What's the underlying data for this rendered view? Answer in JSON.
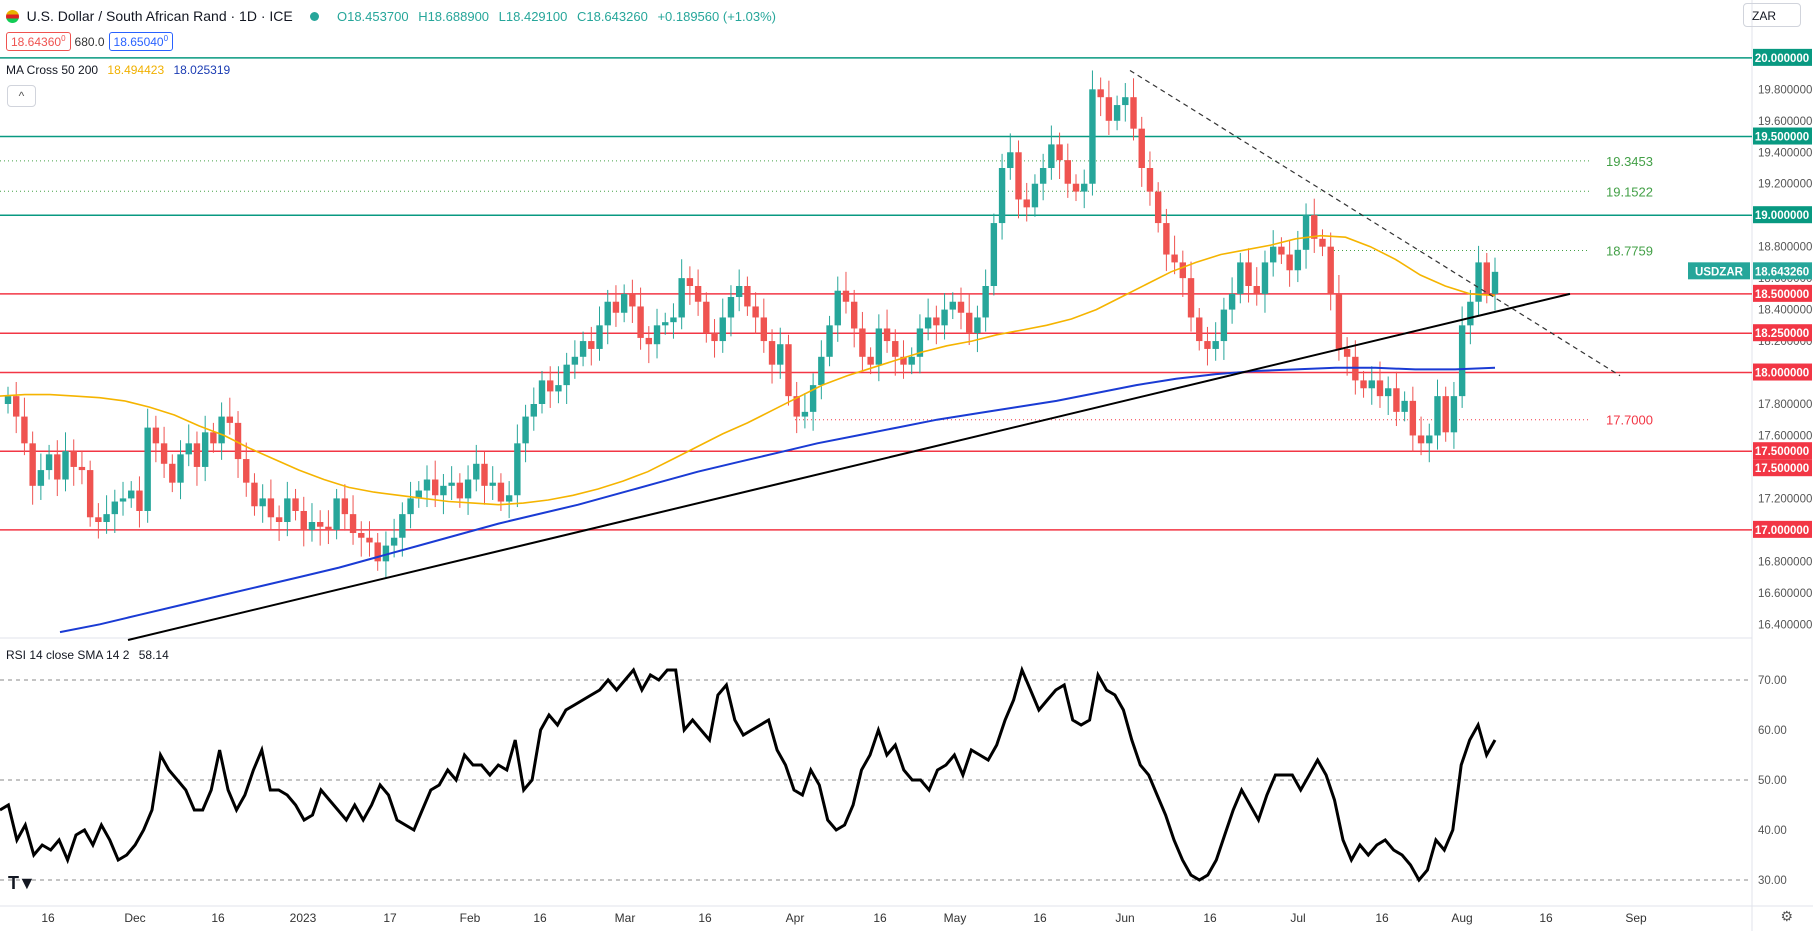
{
  "header": {
    "title": "U.S. Dollar / South African Rand · 1D · ICE",
    "open": "O18.453700",
    "high": "H18.688900",
    "low": "L18.429100",
    "close": "C18.643260",
    "change": "+0.189560 (+1.03%)",
    "sell_price": "18.64360",
    "sell_sup": "0",
    "spread": "680.0",
    "buy_price": "18.65040",
    "buy_sup": "0",
    "currency": "ZAR"
  },
  "indicators": {
    "ma_cross": {
      "label": "MA Cross 50 200",
      "fast": "18.494423",
      "slow": "18.025319"
    },
    "rsi": {
      "label": "RSI 14 close SMA 14 2",
      "value": "58.14"
    }
  },
  "colors": {
    "up": "#26a69a",
    "down": "#ef5350",
    "ma_fast": "#f5b400",
    "ma_slow": "#1a3bd4",
    "support_red": "#f23645",
    "support_green": "#089981",
    "label_green": "#43a047",
    "label_red": "#f23645"
  },
  "chart_data": [
    {
      "type": "candlestick",
      "symbol": "USDZAR",
      "last_price": "18.643260",
      "ylim": [
        16.3,
        20.05
      ],
      "y_ticks": [
        "16.400000",
        "16.600000",
        "16.800000",
        "17.000000",
        "17.200000",
        "17.400000",
        "17.500000",
        "17.600000",
        "17.800000",
        "18.000000",
        "18.200000",
        "18.250000",
        "18.400000",
        "18.500000",
        "18.600000",
        "18.800000",
        "19.000000",
        "19.200000",
        "19.400000",
        "19.500000",
        "19.600000",
        "19.800000",
        "20.000000"
      ],
      "x_ticks": [
        "16",
        "Dec",
        "16",
        "2023",
        "17",
        "Feb",
        "16",
        "Mar",
        "16",
        "Apr",
        "16",
        "May",
        "16",
        "Jun",
        "16",
        "Jul",
        "16",
        "Aug",
        "16",
        "Sep"
      ],
      "horizontal_levels": [
        {
          "value": 20.0,
          "color": "green",
          "label": "20.000000"
        },
        {
          "value": 19.5,
          "color": "green",
          "label": "19.500000"
        },
        {
          "value": 19.0,
          "color": "green",
          "label": "19.000000"
        },
        {
          "value": 18.5,
          "color": "red",
          "label": "18.500000"
        },
        {
          "value": 18.25,
          "color": "red",
          "label": "18.250000"
        },
        {
          "value": 18.0,
          "color": "red",
          "label": "18.000000"
        },
        {
          "value": 17.5,
          "color": "red",
          "label": "17.500000"
        },
        {
          "value": 17.0,
          "color": "red",
          "label": "17.000000"
        }
      ],
      "dotted_levels": [
        {
          "value": 19.3453,
          "label": "19.3453",
          "color": "green"
        },
        {
          "value": 19.1522,
          "label": "19.1522",
          "color": "green"
        },
        {
          "value": 18.7759,
          "label": "18.7759",
          "color": "green"
        },
        {
          "value": 17.7,
          "label": "17.7000",
          "color": "red"
        }
      ],
      "extra_axis_label": "17.500000",
      "close_series_note": "approximate daily closes",
      "closes": [
        17.85,
        17.72,
        17.55,
        17.28,
        17.38,
        17.48,
        17.32,
        17.5,
        17.4,
        17.38,
        17.08,
        17.05,
        17.1,
        17.18,
        17.2,
        17.25,
        17.12,
        17.65,
        17.55,
        17.42,
        17.3,
        17.48,
        17.55,
        17.4,
        17.62,
        17.55,
        17.72,
        17.68,
        17.45,
        17.3,
        17.15,
        17.2,
        17.08,
        17.05,
        17.2,
        17.12,
        17.0,
        17.05,
        17.02,
        17.0,
        17.2,
        17.1,
        16.98,
        16.95,
        16.92,
        16.8,
        16.9,
        16.95,
        17.1,
        17.2,
        17.25,
        17.32,
        17.22,
        17.28,
        17.3,
        17.2,
        17.32,
        17.42,
        17.28,
        17.3,
        17.18,
        17.22,
        17.55,
        17.72,
        17.8,
        17.95,
        17.88,
        17.92,
        18.05,
        18.1,
        18.2,
        18.15,
        18.3,
        18.45,
        18.38,
        18.5,
        18.42,
        18.22,
        18.18,
        18.3,
        18.32,
        18.35,
        18.6,
        18.55,
        18.45,
        18.25,
        18.2,
        18.35,
        18.48,
        18.55,
        18.42,
        18.35,
        18.2,
        18.05,
        18.18,
        17.85,
        17.72,
        17.75,
        17.92,
        18.1,
        18.3,
        18.52,
        18.45,
        18.28,
        18.1,
        18.05,
        18.28,
        18.2,
        18.1,
        18.05,
        18.1,
        18.28,
        18.35,
        18.3,
        18.4,
        18.45,
        18.38,
        18.25,
        18.35,
        18.55,
        18.95,
        19.3,
        19.4,
        19.1,
        19.05,
        19.2,
        19.3,
        19.45,
        19.35,
        19.2,
        19.15,
        19.2,
        19.8,
        19.75,
        19.6,
        19.7,
        19.75,
        19.55,
        19.3,
        19.15,
        18.95,
        18.75,
        18.7,
        18.6,
        18.35,
        18.2,
        18.15,
        18.2,
        18.4,
        18.5,
        18.7,
        18.55,
        18.5,
        18.7,
        18.8,
        18.75,
        18.65,
        18.78,
        19.0,
        18.85,
        18.8,
        18.5,
        18.15,
        18.1,
        17.95,
        17.9,
        17.95,
        17.85,
        17.9,
        17.75,
        17.82,
        17.6,
        17.55,
        17.6,
        17.85,
        17.62,
        17.85,
        18.3,
        18.45,
        18.7,
        18.5,
        18.64
      ],
      "ma50": [
        17.85,
        17.86,
        17.86,
        17.85,
        17.84,
        17.82,
        17.78,
        17.73,
        17.66,
        17.6,
        17.52,
        17.45,
        17.38,
        17.32,
        17.27,
        17.24,
        17.22,
        17.2,
        17.18,
        17.17,
        17.16,
        17.17,
        17.19,
        17.22,
        17.26,
        17.31,
        17.37,
        17.45,
        17.53,
        17.61,
        17.68,
        17.76,
        17.84,
        17.92,
        17.98,
        18.03,
        18.08,
        18.13,
        18.17,
        18.2,
        18.24,
        18.27,
        18.3,
        18.34,
        18.4,
        18.48,
        18.56,
        18.64,
        18.7,
        18.75,
        18.78,
        18.81,
        18.85,
        18.87,
        18.86,
        18.8,
        18.72,
        18.62,
        18.55,
        18.5,
        18.49
      ],
      "ma200": [
        16.35,
        16.4,
        16.46,
        16.52,
        16.58,
        16.64,
        16.7,
        16.76,
        16.83,
        16.9,
        16.97,
        17.04,
        17.1,
        17.16,
        17.23,
        17.3,
        17.37,
        17.43,
        17.49,
        17.55,
        17.6,
        17.65,
        17.7,
        17.74,
        17.78,
        17.82,
        17.87,
        17.92,
        17.96,
        17.99,
        18.01,
        18.02,
        18.03,
        18.03,
        18.02,
        18.02,
        18.03
      ],
      "trendline_support": [
        [
          16.3,
          "start"
        ],
        [
          18.5,
          "end"
        ]
      ],
      "trendline_resistance_dashed": [
        [
          19.92,
          "start"
        ],
        [
          17.92,
          "end"
        ]
      ]
    },
    {
      "type": "line",
      "name": "RSI 14",
      "ylim": [
        27,
        76
      ],
      "y_ticks": [
        "30.00",
        "40.00",
        "50.00",
        "60.00",
        "70.00"
      ],
      "dashed_levels": [
        70,
        50,
        30
      ],
      "values": [
        44,
        45,
        38,
        41,
        35,
        37,
        36,
        38,
        34,
        39,
        40,
        37,
        41,
        38,
        34,
        35,
        37,
        40,
        44,
        55,
        52,
        50,
        48,
        44,
        44,
        48,
        56,
        48,
        44,
        47,
        52,
        56,
        48,
        48,
        47,
        45,
        42,
        43,
        48,
        46,
        44,
        42,
        45,
        42,
        45,
        49,
        47,
        42,
        41,
        40,
        44,
        48,
        49,
        52,
        50,
        55,
        53,
        53,
        51,
        53,
        52,
        58,
        48,
        50,
        60,
        63,
        61,
        64,
        65,
        66,
        67,
        68,
        70,
        68,
        70,
        72,
        68,
        71,
        70,
        72,
        72,
        60,
        62,
        60,
        58,
        67,
        69,
        62,
        59,
        60,
        61,
        62,
        56,
        53,
        48,
        47,
        52,
        49,
        42,
        40,
        41,
        45,
        52,
        55,
        60,
        55,
        57,
        52,
        50,
        50,
        48,
        52,
        53,
        55,
        51,
        56,
        55,
        54,
        57,
        62,
        66,
        72,
        68,
        64,
        66,
        68,
        69,
        62,
        61,
        62,
        71,
        68,
        67,
        64,
        58,
        53,
        51,
        47,
        43,
        38,
        34,
        31,
        30,
        31,
        34,
        39,
        44,
        48,
        45,
        42,
        47,
        51,
        51,
        51,
        48,
        51,
        54,
        51,
        46,
        38,
        34,
        37,
        35,
        37,
        38,
        36,
        35,
        33,
        30,
        32,
        38,
        36,
        40,
        53,
        58,
        61,
        55,
        58
      ]
    }
  ]
}
